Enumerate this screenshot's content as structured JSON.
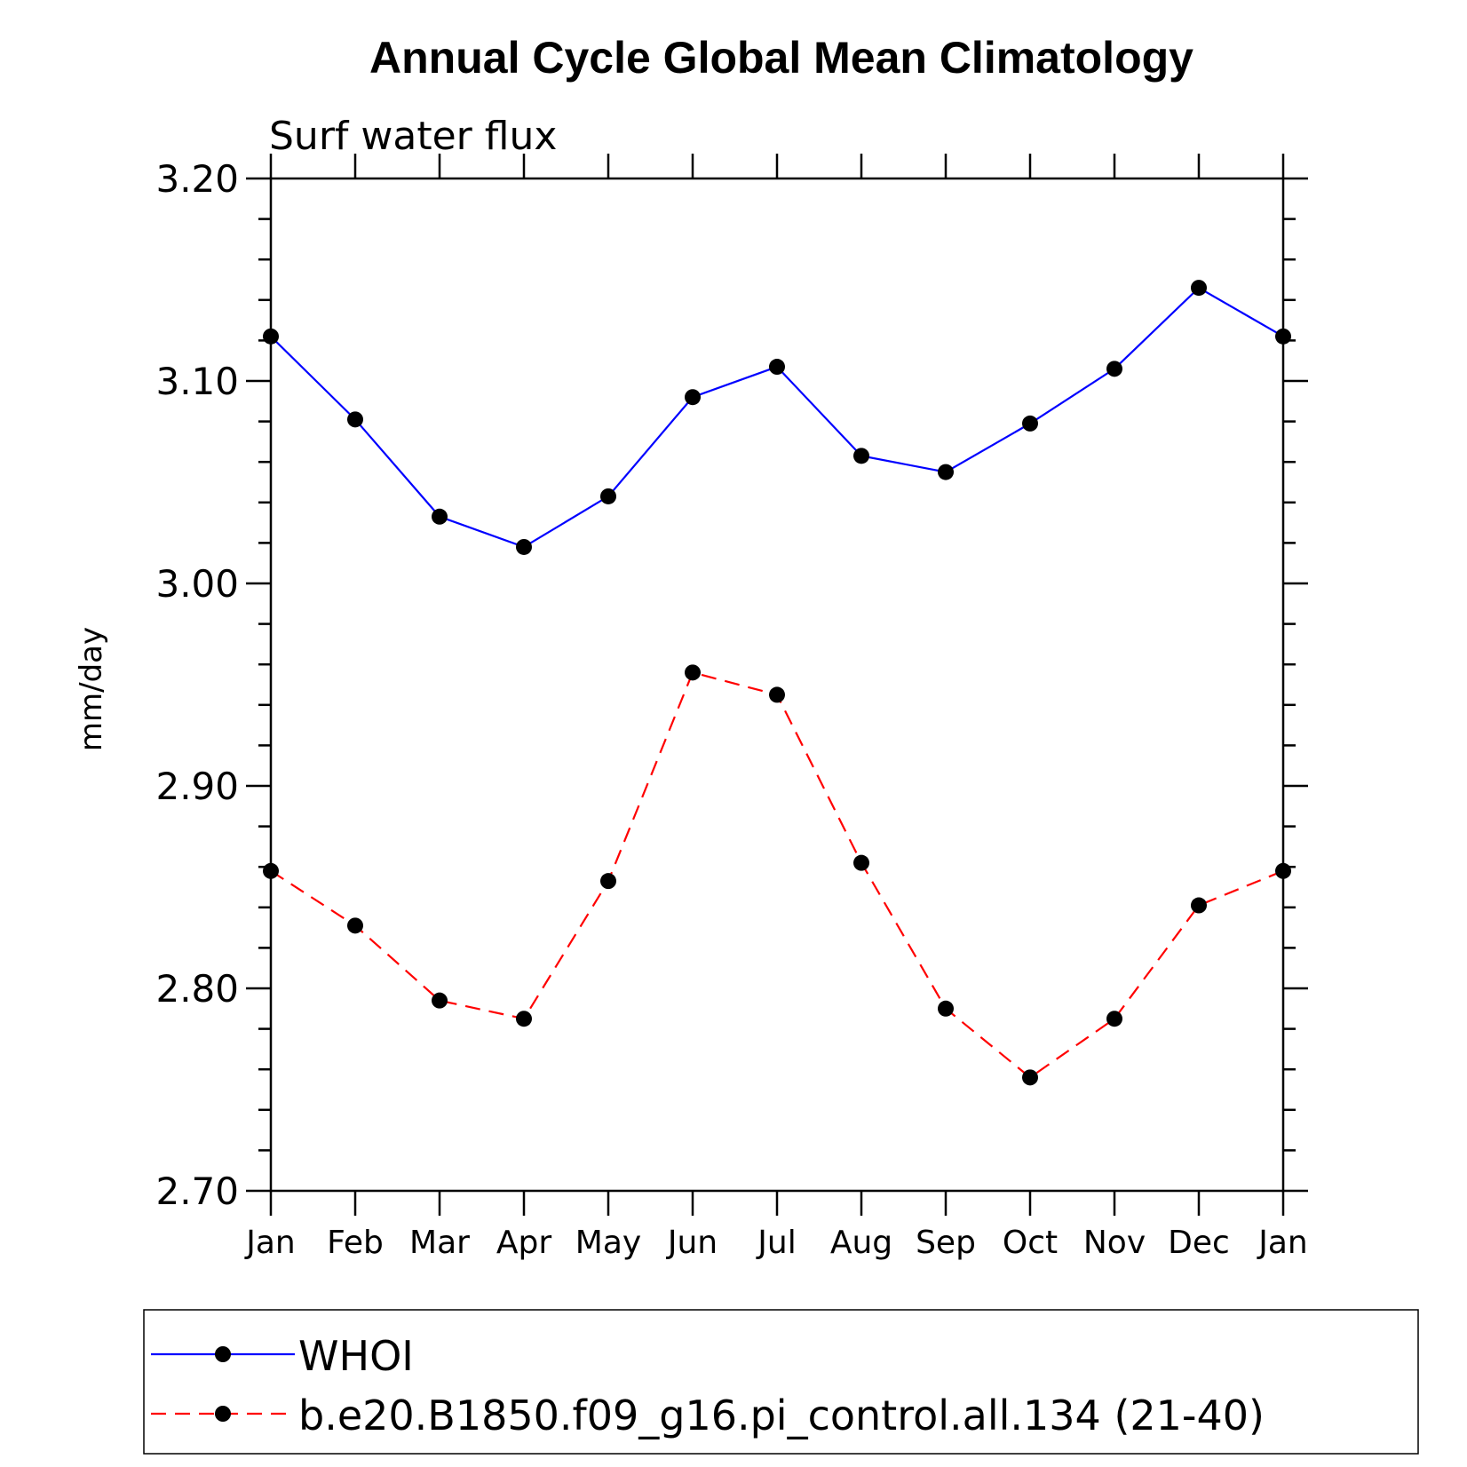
{
  "chart_data": {
    "type": "line",
    "title": "Annual Cycle Global Mean Climatology",
    "subtitle": "Surf water flux",
    "ylabel": "mm/day",
    "xlabel": "",
    "categories": [
      "Jan",
      "Feb",
      "Mar",
      "Apr",
      "May",
      "Jun",
      "Jul",
      "Aug",
      "Sep",
      "Oct",
      "Nov",
      "Dec",
      "Jan"
    ],
    "ylim": [
      2.7,
      3.2
    ],
    "yticks": [
      "2.70",
      "2.80",
      "2.90",
      "3.00",
      "3.10",
      "3.20"
    ],
    "grid": false,
    "legend_position": "bottom",
    "series": [
      {
        "name": "WHOI",
        "color": "#0000ff",
        "line_style": "solid",
        "marker": "filled-circle",
        "values": [
          3.122,
          3.081,
          3.033,
          3.018,
          3.043,
          3.092,
          3.107,
          3.063,
          3.055,
          3.079,
          3.106,
          3.146,
          3.122
        ]
      },
      {
        "name": "b.e20.B1850.f09_g16.pi_control.all.134 (21-40)",
        "color": "#ff0000",
        "line_style": "dashed",
        "marker": "filled-circle",
        "values": [
          2.858,
          2.831,
          2.794,
          2.785,
          2.853,
          2.956,
          2.945,
          2.862,
          2.79,
          2.756,
          2.785,
          2.841,
          2.858
        ]
      }
    ]
  }
}
